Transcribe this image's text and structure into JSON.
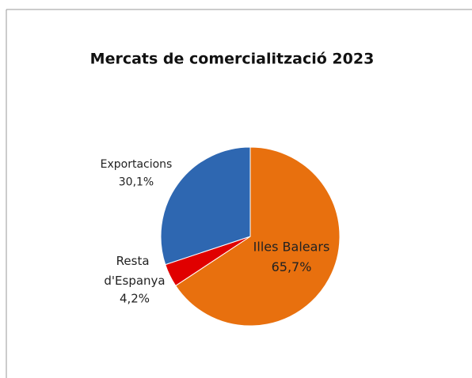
{
  "chart_data": {
    "type": "pie",
    "title": "Mercats de comercialització 2023",
    "categories": [
      "Illes Balears",
      "Resta d'Espanya",
      "Exportacions"
    ],
    "values": [
      65.7,
      4.2,
      30.1
    ],
    "value_labels": [
      "65,7%",
      "4,2%",
      "30,1%"
    ],
    "colors": [
      "#e8700e",
      "#e00000",
      "#2e67b1"
    ]
  }
}
